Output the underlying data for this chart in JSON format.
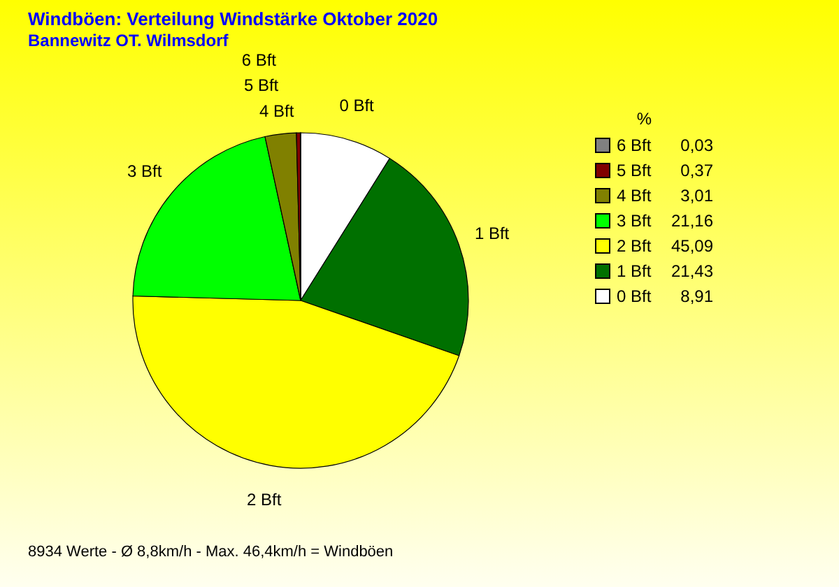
{
  "chart_data": {
    "type": "pie",
    "title": "Windböen: Verteilung Windstärke  Oktober 2020",
    "subtitle": "Bannewitz OT. Wilmsdorf",
    "legend_title": "%",
    "categories": [
      "0 Bft",
      "1 Bft",
      "2 Bft",
      "3 Bft",
      "4 Bft",
      "5 Bft",
      "6 Bft"
    ],
    "values": [
      8.91,
      21.43,
      45.09,
      21.16,
      3.01,
      0.37,
      0.03
    ],
    "value_labels": [
      "8,91",
      "21,43",
      "45,09",
      "21,16",
      "3,01",
      "0,37",
      "0,03"
    ],
    "colors": [
      "#ffffff",
      "#007000",
      "#ffff00",
      "#00ff00",
      "#808000",
      "#800000",
      "#808080"
    ],
    "legend": "right",
    "annotations": [
      "8934 Werte - Ø 8,8km/h - Max. 46,4km/h = Windböen"
    ]
  }
}
